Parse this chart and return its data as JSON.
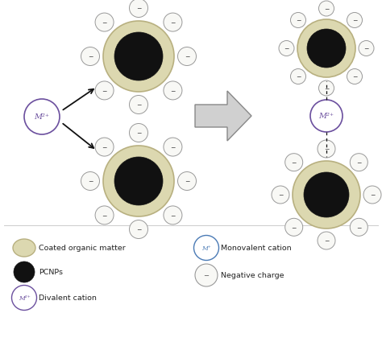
{
  "bg_color": "#ffffff",
  "tan_fill": "#dcd8b0",
  "tan_edge": "#b8b080",
  "black_color": "#111111",
  "purple_color": "#6b4f9e",
  "blue_color": "#4a7ab5",
  "neg_fill": "#f8f8f5",
  "neg_edge": "#999999",
  "text_color": "#222222",
  "figsize": [
    4.74,
    4.31
  ],
  "dpi": 100,
  "xlim": [
    0,
    4.74
  ],
  "ylim": [
    0,
    4.31
  ]
}
